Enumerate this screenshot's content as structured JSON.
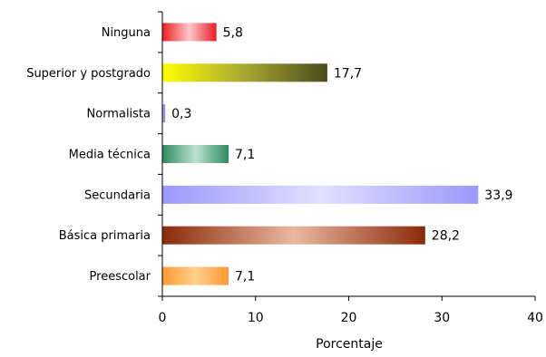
{
  "chart_data": {
    "type": "bar",
    "orientation": "horizontal",
    "categories": [
      "Ninguna",
      "Superior y postgrado",
      "Normalista",
      "Media técnica",
      "Secundaria",
      "Básica primaria",
      "Preescolar"
    ],
    "values": [
      5.8,
      17.7,
      0.3,
      7.1,
      33.9,
      28.2,
      7.1
    ],
    "value_labels": [
      "5,8",
      "17,7",
      "0,3",
      "7,1",
      "33,9",
      "28,2",
      "7,1"
    ],
    "xlabel": "Porcentaje",
    "ylabel": "",
    "xlim": [
      0,
      40
    ],
    "xticks": [
      0,
      10,
      20,
      30,
      40
    ],
    "xtick_labels": [
      "0",
      "10",
      "20",
      "30",
      "40"
    ],
    "grid": false,
    "legend": "none",
    "bar_colors": [
      {
        "edge": "#ee1c25",
        "center": "#fbc8cb"
      },
      {
        "edge": "#ffff00",
        "center": "#a6a633",
        "end": "#4a4a1a"
      },
      {
        "edge": "#7070d8",
        "center": "#b0b0f0"
      },
      {
        "edge": "#2e8a5e",
        "center": "#bde4cf"
      },
      {
        "edge": "#9999ff",
        "center": "#e0e0ff"
      },
      {
        "edge": "#8b2a0a",
        "center": "#e8b8a0"
      },
      {
        "edge": "#ff9933",
        "center": "#ffd08a"
      }
    ]
  }
}
